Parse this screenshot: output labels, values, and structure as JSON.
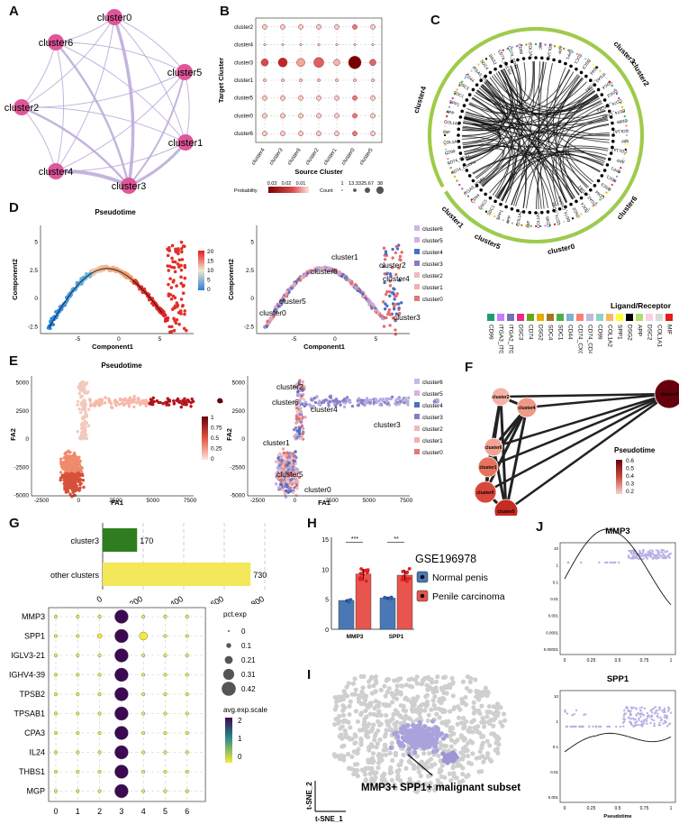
{
  "panel_labels": [
    "A",
    "B",
    "C",
    "D",
    "E",
    "F",
    "G",
    "H",
    "I",
    "J"
  ],
  "panelA": {
    "nodes": [
      "cluster0",
      "cluster6",
      "cluster5",
      "cluster2",
      "cluster1",
      "cluster4",
      "cluster3"
    ],
    "node_color": "#e0569a",
    "edge_color": "#b9a8d8"
  },
  "panelB": {
    "chart_data": {
      "type": "scatter",
      "xlabel": "Source Cluster",
      "ylabel": "Target Cluster",
      "x_categories": [
        "cluster4",
        "cluster3",
        "cluster6",
        "cluster2",
        "cluster1",
        "cluster0",
        "cluster5"
      ],
      "y_categories": [
        "cluster2",
        "cluster4",
        "cluster3",
        "cluster1",
        "cluster5",
        "cluster0",
        "cluster6"
      ],
      "strong_row": "cluster3",
      "legend_probability_title": "Probability",
      "legend_probability_ticks": [
        "0.03",
        "0.02",
        "0.01"
      ],
      "legend_count_title": "Count",
      "legend_count_ticks": [
        "1",
        "13.33",
        "25.67",
        "38"
      ]
    }
  },
  "panelC": {
    "sectors": [
      "cluster4",
      "cluster3",
      "cluster6",
      "cluster0",
      "cluster5",
      "cluster1",
      "cluster2"
    ],
    "ligand_labels": [
      "CD74_CXCR4",
      "CD74_CD44",
      "CD99",
      "COL1A1",
      "MIF",
      "COL1A2",
      "APP",
      "SPP1",
      "SDC1",
      "DSC3",
      "CD44",
      "ITGA3_ITGB1",
      "SDC4",
      "DSG2"
    ],
    "legend_title": "Ligand/Receptor",
    "legend_items": [
      {
        "label": "CD99",
        "color": "#1b9e77"
      },
      {
        "label": "ITGA3_ITGB1",
        "color": "#c77cff"
      },
      {
        "label": "ITGA2_ITGB1",
        "color": "#7570b3"
      },
      {
        "label": "DSC3",
        "color": "#e7298a"
      },
      {
        "label": "CD74",
        "color": "#66a61e"
      },
      {
        "label": "DSG2",
        "color": "#e6ab02"
      },
      {
        "label": "SDC4",
        "color": "#a6761d"
      },
      {
        "label": "SDC1",
        "color": "#4daf4a"
      },
      {
        "label": "CD44",
        "color": "#80b1d3"
      },
      {
        "label": "CD74_CXCR4",
        "color": "#fb8072"
      },
      {
        "label": "CD74_CD44",
        "color": "#bebada"
      },
      {
        "label": "CD99",
        "color": "#8dd3c7"
      },
      {
        "label": "COL1A2",
        "color": "#fdb462"
      },
      {
        "label": "SPP1",
        "color": "#ffff33"
      },
      {
        "label": "DSG2",
        "color": "#000000"
      },
      {
        "label": "APP",
        "color": "#b3de69"
      },
      {
        "label": "DSC2",
        "color": "#fccde5"
      },
      {
        "label": "COL1A1",
        "color": "#d9d9d9"
      },
      {
        "label": "MIF",
        "color": "#e41a1c"
      }
    ]
  },
  "panelD": {
    "left_title": "Pseudotime",
    "xlabel": "Component1",
    "ylabel": "Component2",
    "x_ticks": [
      "-5",
      "0",
      "5"
    ],
    "y_ticks": [
      "5",
      "2.5",
      "0",
      "-2.5"
    ],
    "colorbar_ticks": [
      "20",
      "15",
      "10",
      "5",
      "0"
    ],
    "right_labels": [
      "cluster1",
      "cluster6",
      "cluster2",
      "cluster4",
      "cluster5",
      "cluster0",
      "cluster3"
    ],
    "legend": [
      "cluster6",
      "cluster5",
      "cluster4",
      "cluster3",
      "cluster2",
      "cluster1",
      "cluster0"
    ]
  },
  "panelE": {
    "left_title": "Pseudotime",
    "xlabel": "FA1",
    "ylabel": "FA2",
    "x_ticks": [
      "-2500",
      "0",
      "2500",
      "5000",
      "7500"
    ],
    "y_ticks": [
      "5000",
      "2500",
      "0",
      "-2500",
      "-5000"
    ],
    "colorbar_ticks": [
      "1",
      "0.75",
      "0.5",
      "0.25",
      "0"
    ],
    "right_labels": [
      "cluster2",
      "cluster6",
      "cluster4",
      "cluster3",
      "cluster1",
      "cluster5",
      "cluster0"
    ],
    "legend": [
      "cluster6",
      "cluster5",
      "cluster4",
      "cluster3",
      "cluster2",
      "cluster1",
      "cluster0"
    ]
  },
  "panelF": {
    "nodes": [
      "cluster2",
      "cluster4",
      "cluster6",
      "cluster1",
      "cluster0",
      "cluster5",
      "cluster3"
    ],
    "legend_title": "Pseudotime",
    "legend_ticks": [
      "0.6",
      "0.5",
      "0.4",
      "0.3",
      "0.2"
    ]
  },
  "panelG": {
    "bar_chart": {
      "type": "bar",
      "categories": [
        "cluster3",
        "other clusters"
      ],
      "values": [
        170,
        730
      ],
      "colors": [
        "#2e7d1e",
        "#f2e85a"
      ],
      "x_ticks": [
        "0",
        "200",
        "400",
        "600",
        "800"
      ]
    },
    "dot_chart": {
      "type": "scatter",
      "genes": [
        "MMP3",
        "SPP1",
        "IGLV3-21",
        "IGHV4-39",
        "TPSB2",
        "TPSAB1",
        "CPA3",
        "IL24",
        "THBS1",
        "MGP"
      ],
      "x_categories": [
        "0",
        "1",
        "2",
        "3",
        "4",
        "5",
        "6"
      ],
      "size_legend_title": "pct.exp",
      "size_legend_ticks": [
        "0",
        "0.1",
        "0.21",
        "0.31",
        "0.42"
      ],
      "color_legend_title": "avg.exp.scale",
      "color_legend_ticks": [
        "2",
        "1",
        "0"
      ]
    }
  },
  "panelH": {
    "chart_data": {
      "type": "bar",
      "categories": [
        "MMP3",
        "SPP1"
      ],
      "series": [
        {
          "name": "Normal penis",
          "values": [
            4.8,
            5.2
          ],
          "color": "#4a78b6"
        },
        {
          "name": "Penile carcinoma",
          "values": [
            9.2,
            9.0
          ],
          "color": "#e8544e"
        }
      ],
      "y_ticks": [
        "15",
        "10",
        "5",
        "0"
      ],
      "significance": [
        "***",
        "**"
      ],
      "legend_title": "GSE196978"
    }
  },
  "panelI": {
    "xlabel": "t-SNE_1",
    "ylabel": "t-SNE_2",
    "annotation": "MMP3+ SPP1+ malignant subset"
  },
  "panelJ": {
    "charts": [
      {
        "title": "MMP3",
        "xlabel": "Pseudotime",
        "x_ticks": [
          "0",
          "0.25",
          "0.5",
          "0.75",
          "1"
        ],
        "y_ticks": [
          "10",
          "1",
          "0.1",
          "0.01",
          "0.001",
          "0.0001",
          "0.00001"
        ]
      },
      {
        "title": "SPP1",
        "xlabel": "Pseudotime",
        "x_ticks": [
          "0",
          "0.25",
          "0.5",
          "0.75",
          "1"
        ],
        "y_ticks": [
          "10",
          "1",
          "0.1",
          "0.01",
          "0.001"
        ]
      }
    ]
  }
}
